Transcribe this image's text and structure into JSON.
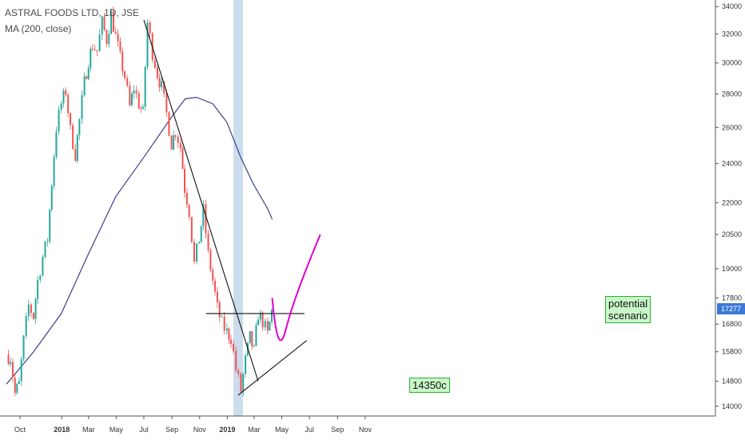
{
  "header": {
    "title": "ASTRAL FOODS LTD, 1D, JSE",
    "indicator": "MA (200, close)"
  },
  "chart_data": {
    "type": "line",
    "ylim": [
      13700,
      34500
    ],
    "y_scale": "log",
    "y_ticks": [
      "34000",
      "32000",
      "30000",
      "28000",
      "26000",
      "24000",
      "22000",
      "20500",
      "19000",
      "17800",
      "16800",
      "15800",
      "14800",
      "14000"
    ],
    "x_ticks": [
      "Oct",
      "2018",
      "Mar",
      "May",
      "Jul",
      "Sep",
      "Nov",
      "2019",
      "Mar",
      "May",
      "Jul",
      "Sep",
      "Nov"
    ],
    "series": [
      {
        "type": "candlestick",
        "color_up": "#26a69a",
        "color_down": "#ef5350",
        "x": [
          "2017-09-01",
          "2017-09-10",
          "2017-09-20",
          "2017-09-29",
          "2017-10-09",
          "2017-10-20",
          "2017-10-31",
          "2017-11-09",
          "2017-11-20",
          "2017-12-01",
          "2017-12-10",
          "2017-12-20",
          "2017-12-31",
          "2018-01-10",
          "2018-01-20",
          "2018-01-31",
          "2018-02-09",
          "2018-02-20",
          "2018-03-01",
          "2018-03-10",
          "2018-03-20",
          "2018-03-31",
          "2018-04-10",
          "2018-04-20",
          "2018-04-30",
          "2018-05-10",
          "2018-05-20",
          "2018-05-31",
          "2018-06-09",
          "2018-06-20",
          "2018-06-29",
          "2018-07-09",
          "2018-07-20",
          "2018-07-31",
          "2018-08-09",
          "2018-08-20",
          "2018-08-31",
          "2018-09-09",
          "2018-09-20",
          "2018-09-29",
          "2018-10-09",
          "2018-10-20",
          "2018-10-31",
          "2018-11-09",
          "2018-11-20",
          "2018-11-30",
          "2018-12-10",
          "2018-12-20",
          "2018-12-31",
          "2019-01-09",
          "2019-01-20",
          "2019-01-31",
          "2019-02-10",
          "2019-02-20",
          "2019-03-01",
          "2019-03-10",
          "2019-03-20",
          "2019-03-31",
          "2019-04-09"
        ],
        "close": [
          15700,
          15600,
          14400,
          14700,
          16200,
          17500,
          17100,
          18500,
          19500,
          20300,
          23000,
          26000,
          27400,
          28200,
          25800,
          24500,
          26400,
          28700,
          30200,
          31200,
          30800,
          32800,
          31600,
          33400,
          31800,
          30300,
          29100,
          27200,
          28400,
          27400,
          26800,
          32800,
          30700,
          29300,
          28400,
          26800,
          25100,
          25800,
          24900,
          22700,
          21600,
          19200,
          20300,
          21600,
          19600,
          18500,
          17400,
          16800,
          16500,
          16300,
          15200,
          14500,
          15500,
          16300,
          15800,
          17200,
          16900,
          16400,
          17277
        ]
      },
      {
        "name": "MA (200, close)",
        "type": "line",
        "color": "#3f3f8c",
        "x": [
          "2017-09-01",
          "2017-10-31",
          "2017-12-31",
          "2018-02-28",
          "2018-04-30",
          "2018-06-30",
          "2018-08-31",
          "2018-09-30",
          "2018-10-25",
          "2018-11-30",
          "2018-12-31",
          "2019-01-31",
          "2019-02-28",
          "2019-03-31",
          "2019-04-10"
        ],
        "values": [
          14700,
          15800,
          17200,
          19600,
          22300,
          24300,
          26600,
          27700,
          27800,
          27400,
          26300,
          24300,
          22900,
          21700,
          21200
        ]
      }
    ],
    "annotations": [
      {
        "type": "label",
        "text": "14350c",
        "color": "#2fae2f"
      },
      {
        "type": "label",
        "text": [
          "potential",
          "scenario"
        ],
        "color": "#2fae2f"
      },
      {
        "type": "price-tag",
        "text": "17277",
        "color": "#3c78d8"
      },
      {
        "type": "trendline",
        "from": [
          "2018-07-01",
          33000
        ],
        "to": [
          "2019-03-10",
          14800
        ]
      },
      {
        "type": "trendline",
        "from": [
          "2019-01-25",
          14350
        ],
        "to": [
          "2019-06-25",
          16200
        ]
      },
      {
        "type": "horizontal",
        "from": "2018-11-15",
        "to": "2019-06-20",
        "value": 17200
      },
      {
        "type": "vertical-band",
        "date": "2019-01-25",
        "color": "#a9c4e0"
      },
      {
        "type": "curve",
        "color": "#e000d0",
        "points": [
          [
            "2019-04-10",
            17800
          ],
          [
            "2019-05-10",
            16600
          ],
          [
            "2019-07-25",
            20500
          ]
        ]
      }
    ]
  }
}
